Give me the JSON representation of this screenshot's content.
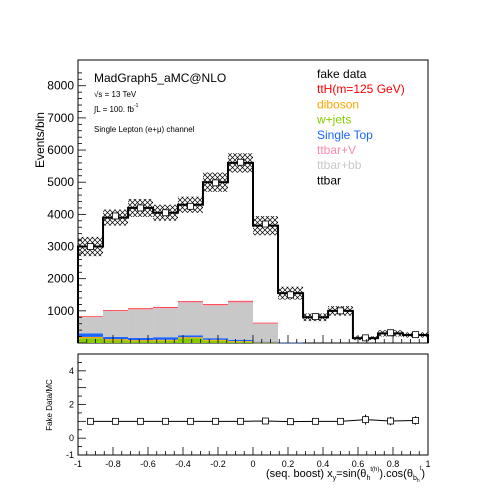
{
  "chart_data": [
    {
      "type": "bar",
      "stacked": true,
      "ylabel": "Events/bin",
      "ylim": [
        0,
        8800
      ],
      "xlim": [
        -1,
        1
      ],
      "yticks": [
        "1000",
        "2000",
        "3000",
        "4000",
        "5000",
        "6000",
        "7000",
        "8000"
      ],
      "annotations": {
        "generator": "MadGraph5_aMC@NLO",
        "energy": "√s = 13 TeV",
        "lumi": "∫L = 100. fb",
        "lumi_exp": "-1",
        "channel": "Single Lepton (e+μ) channel"
      },
      "legend_position": "top-right",
      "legend": [
        {
          "label": "fake data",
          "color": "#000000"
        },
        {
          "label": "ttH(m=125 GeV)",
          "color": "#ff0000"
        },
        {
          "label": "diboson",
          "color": "#ffa500"
        },
        {
          "label": "w+jets",
          "color": "#88cc00"
        },
        {
          "label": "Single Top",
          "color": "#1a66ff"
        },
        {
          "label": "ttbar+V",
          "color": "#ff88aa"
        },
        {
          "label": "ttbar+bb",
          "color": "#c8c8c8"
        },
        {
          "label": "ttbar",
          "color": "#000000"
        }
      ],
      "bin_edges": [
        -1.0,
        -0.857,
        -0.714,
        -0.571,
        -0.429,
        -0.286,
        -0.143,
        0.0,
        0.143,
        0.286,
        0.429,
        0.571,
        0.714,
        0.857,
        1.0
      ],
      "series": [
        {
          "name": "w+jets",
          "values": [
            150,
            80,
            60,
            70,
            150,
            70,
            40,
            10,
            0,
            0,
            0,
            0,
            0,
            0
          ]
        },
        {
          "name": "diboson",
          "values": [
            40,
            40,
            30,
            30,
            30,
            30,
            20,
            10,
            0,
            0,
            0,
            0,
            0,
            0
          ]
        },
        {
          "name": "Single Top",
          "values": [
            110,
            70,
            70,
            80,
            60,
            50,
            40,
            20,
            10,
            0,
            0,
            0,
            0,
            0
          ]
        },
        {
          "name": "ttbar+bb",
          "values": [
            500,
            800,
            880,
            900,
            1020,
            1020,
            1160,
            560,
            0,
            0,
            0,
            0,
            0,
            0
          ]
        },
        {
          "name": "ttbar+V",
          "values": [
            20,
            20,
            30,
            30,
            30,
            30,
            40,
            20,
            0,
            0,
            0,
            0,
            0,
            0
          ]
        },
        {
          "name": "ttH(m=125 GeV)",
          "values": [
            10,
            10,
            10,
            10,
            10,
            10,
            10,
            10,
            0,
            0,
            0,
            0,
            0,
            0
          ]
        }
      ],
      "total_mc": [
        3000,
        3900,
        4200,
        4050,
        4300,
        5000,
        5600,
        3650,
        1550,
        800,
        1000,
        150,
        300,
        250
      ],
      "mc_uncertainty": [
        300,
        250,
        280,
        250,
        250,
        300,
        300,
        300,
        200,
        120,
        150,
        60,
        100,
        80
      ],
      "fake_data": {
        "x": [
          -0.929,
          -0.786,
          -0.643,
          -0.5,
          -0.357,
          -0.214,
          -0.071,
          0.071,
          0.214,
          0.357,
          0.5,
          0.643,
          0.786,
          0.929
        ],
        "y": [
          3000,
          3950,
          4200,
          4050,
          4250,
          4980,
          5620,
          3700,
          1500,
          820,
          1000,
          160,
          320,
          260
        ]
      }
    },
    {
      "type": "scatter",
      "ylabel": "Fake Data/MC",
      "xlabel": "(seq. boost) x_y=sin(θ_h^{t(h)}).cos(θ_{b_h}^{t})",
      "ylim": [
        -1,
        5
      ],
      "xlim": [
        -1,
        1
      ],
      "yticks": [
        "-1",
        "0",
        "2",
        "4"
      ],
      "xticks": [
        "-1",
        "-0.8",
        "-0.6",
        "-0.4",
        "-0.2",
        "0",
        "0.2",
        "0.4",
        "0.6",
        "0.8",
        "1"
      ],
      "x": [
        -0.929,
        -0.786,
        -0.643,
        -0.5,
        -0.357,
        -0.214,
        -0.071,
        0.071,
        0.214,
        0.357,
        0.5,
        0.643,
        0.786,
        0.929
      ],
      "y": [
        1.0,
        1.0,
        1.0,
        1.0,
        1.0,
        1.0,
        1.0,
        1.02,
        0.98,
        1.0,
        1.0,
        1.1,
        1.02,
        1.05
      ],
      "yerr": [
        0.05,
        0.05,
        0.05,
        0.05,
        0.05,
        0.05,
        0.05,
        0.06,
        0.07,
        0.08,
        0.1,
        0.3,
        0.25,
        0.25
      ]
    }
  ]
}
